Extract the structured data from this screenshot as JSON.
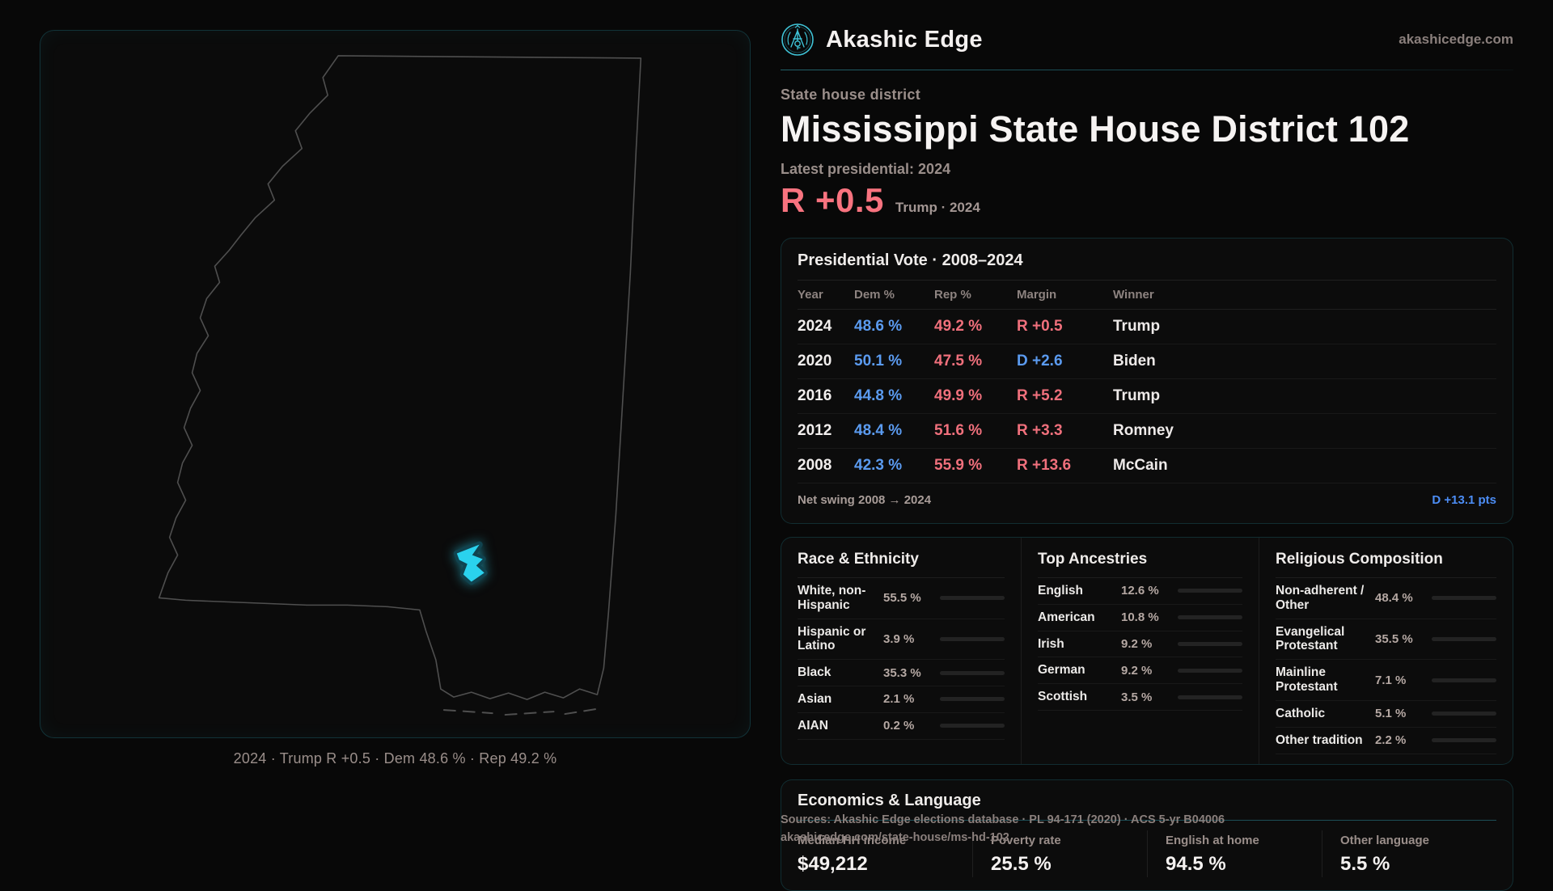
{
  "colors": {
    "dem": "#5b9bf0",
    "rep": "#f0707c",
    "hero": "#f8737f",
    "swing": "#4c8df5",
    "accent": "#2bc6dc"
  },
  "brand": {
    "name": "Akashic Edge",
    "domain": "akashicedge.com"
  },
  "header": {
    "kicker": "State house district",
    "title": "Mississippi State House District 102",
    "latest": "Latest presidential: 2024",
    "hero_margin": "R +0.5",
    "hero_context": "Trump · 2024"
  },
  "map": {
    "caption": "2024 · Trump R +0.5 · Dem 48.6 % · Rep 49.2 %"
  },
  "presidential_table": {
    "title": "Presidential Vote · 2008–2024",
    "columns": {
      "year": "Year",
      "dem": "Dem %",
      "rep": "Rep %",
      "margin": "Margin",
      "winner": "Winner"
    },
    "rows": [
      {
        "year": "2024",
        "dem": "48.6 %",
        "rep": "49.2 %",
        "margin": "R +0.5",
        "margin_party": "R",
        "winner": "Trump"
      },
      {
        "year": "2020",
        "dem": "50.1 %",
        "rep": "47.5 %",
        "margin": "D +2.6",
        "margin_party": "D",
        "winner": "Biden"
      },
      {
        "year": "2016",
        "dem": "44.8 %",
        "rep": "49.9 %",
        "margin": "R +5.2",
        "margin_party": "R",
        "winner": "Trump"
      },
      {
        "year": "2012",
        "dem": "48.4 %",
        "rep": "51.6 %",
        "margin": "R +3.3",
        "margin_party": "R",
        "winner": "Romney"
      },
      {
        "year": "2008",
        "dem": "42.3 %",
        "rep": "55.9 %",
        "margin": "R +13.6",
        "margin_party": "R",
        "winner": "McCain"
      }
    ],
    "net_swing_label": "Net swing 2008 → 2024",
    "net_swing_value": "D +13.1 pts"
  },
  "race_ethnicity": {
    "title": "Race & Ethnicity",
    "rows": [
      {
        "label": "White, non-Hispanic",
        "value": "55.5 %",
        "pct": 55.5,
        "color": "#9db0d3"
      },
      {
        "label": "Hispanic or Latino",
        "value": "3.9 %",
        "pct": 3.9,
        "color": "#e09b2d"
      },
      {
        "label": "Black",
        "value": "35.3 %",
        "pct": 35.3,
        "color": "#8f7be0"
      },
      {
        "label": "Asian",
        "value": "2.1 %",
        "pct": 2.1,
        "color": "#2bb89a"
      },
      {
        "label": "AIAN",
        "value": "0.2 %",
        "pct": 0.2,
        "color": "#d97634"
      }
    ]
  },
  "ancestries": {
    "title": "Top Ancestries",
    "rows": [
      {
        "label": "English",
        "value": "12.6 %",
        "pct": 12.6,
        "color": "#7d93b2"
      },
      {
        "label": "American",
        "value": "10.8 %",
        "pct": 10.8,
        "color": "#7d93b2"
      },
      {
        "label": "Irish",
        "value": "9.2 %",
        "pct": 9.2,
        "color": "#7d93b2"
      },
      {
        "label": "German",
        "value": "9.2 %",
        "pct": 9.2,
        "color": "#7d93b2"
      },
      {
        "label": "Scottish",
        "value": "3.5 %",
        "pct": 3.5,
        "color": "#9aa3ad"
      }
    ]
  },
  "religion": {
    "title": "Religious Composition",
    "rows": [
      {
        "label": "Non-adherent / Other",
        "value": "48.4 %",
        "pct": 48.4,
        "color": "#6e7b8a"
      },
      {
        "label": "Evangelical Protestant",
        "value": "35.5 %",
        "pct": 35.5,
        "color": "#dd6b6b"
      },
      {
        "label": "Mainline Protestant",
        "value": "7.1 %",
        "pct": 7.1,
        "color": "#4e86e0"
      },
      {
        "label": "Catholic",
        "value": "5.1 %",
        "pct": 5.1,
        "color": "#e0b33c"
      },
      {
        "label": "Other tradition",
        "value": "2.2 %",
        "pct": 2.2,
        "color": "#9aa0a8"
      }
    ]
  },
  "economics": {
    "title": "Economics & Language",
    "stats": [
      {
        "label": "Median HH income",
        "value": "$49,212"
      },
      {
        "label": "Poverty rate",
        "value": "25.5 %"
      },
      {
        "label": "English at home",
        "value": "94.5 %"
      },
      {
        "label": "Other language",
        "value": "5.5 %"
      }
    ]
  },
  "footer": {
    "line1": "Sources: Akashic Edge elections database · PL 94-171 (2020) · ACS 5-yr B04006",
    "line2": "akashicedge.com/state-house/ms-hd-102"
  }
}
